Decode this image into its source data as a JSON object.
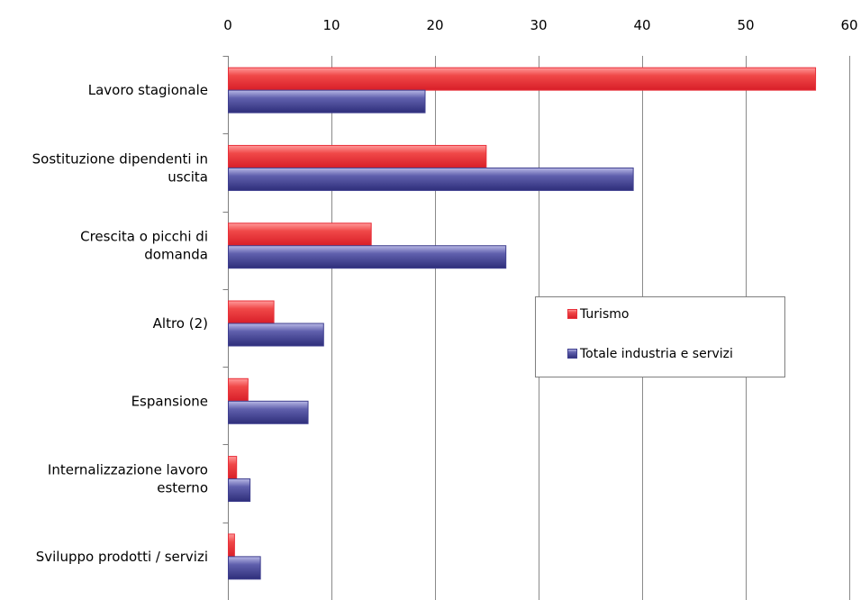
{
  "chart_data": {
    "type": "bar",
    "orientation": "horizontal",
    "categories": [
      [
        "Lavoro stagionale"
      ],
      [
        "Sostituzione dipendenti in",
        "uscita"
      ],
      [
        "Crescita o picchi di",
        "domanda"
      ],
      [
        "Altro (2)"
      ],
      [
        "Espansione"
      ],
      [
        "Internalizzazione lavoro",
        "esterno"
      ],
      [
        "Sviluppo prodotti / servizi"
      ]
    ],
    "series": [
      {
        "name": "Turismo",
        "color": "#e8303a",
        "values": [
          56.7,
          24.9,
          13.8,
          4.4,
          1.9,
          0.8,
          0.6
        ]
      },
      {
        "name": "Totale industria e servizi",
        "color": "#3f3f8f",
        "values": [
          19.0,
          39.1,
          26.8,
          9.2,
          7.7,
          2.1,
          3.1
        ]
      }
    ],
    "xlim": [
      0,
      60
    ],
    "xticks": [
      0,
      10,
      20,
      30,
      40,
      50,
      60
    ],
    "axis_position": "top",
    "grid": true,
    "legend_position": "right"
  }
}
